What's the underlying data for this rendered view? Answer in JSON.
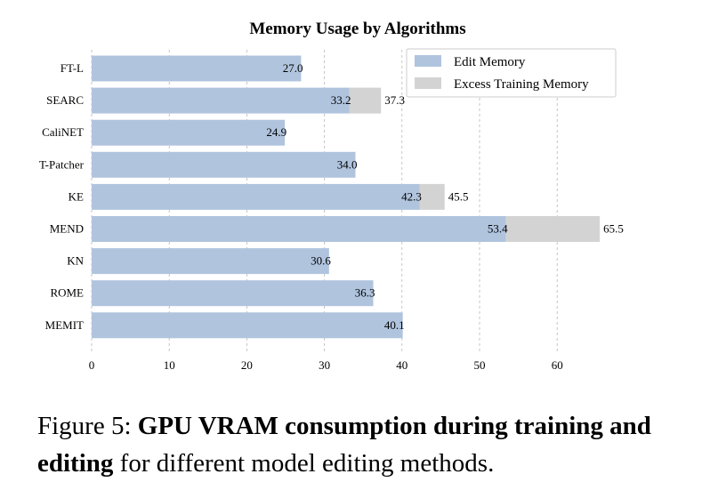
{
  "chart_data": {
    "type": "bar",
    "orientation": "horizontal",
    "stacked": true,
    "title": "Memory Usage by Algorithms",
    "categories": [
      "FT-L",
      "SEARC",
      "CaliNET",
      "T-Patcher",
      "KE",
      "MEND",
      "KN",
      "ROME",
      "MEMIT"
    ],
    "series": [
      {
        "name": "Edit Memory",
        "color": "#b0c4de",
        "values": [
          27.0,
          33.2,
          24.9,
          34.0,
          42.3,
          53.4,
          30.6,
          36.3,
          40.1
        ]
      },
      {
        "name": "Excess Training Memory",
        "color": "#d3d3d3",
        "values": [
          0,
          4.1,
          0,
          0,
          3.2,
          12.1,
          0,
          0,
          0
        ]
      }
    ],
    "edit_labels": [
      "27.0",
      "33.2",
      "24.9",
      "34.0",
      "42.3",
      "53.4",
      "30.6",
      "36.3",
      "40.1"
    ],
    "total_labels": [
      "",
      "37.3",
      "",
      "",
      "45.5",
      "65.5",
      "",
      "",
      ""
    ],
    "xticks": [
      "0",
      "10",
      "20",
      "30",
      "40",
      "50",
      "60"
    ],
    "xlim": [
      0,
      70
    ],
    "grid": "vertical dashed",
    "legend_position": "top-right"
  },
  "caption": {
    "prefix": "Figure 5: ",
    "bold": "GPU VRAM consumption during training and editing",
    "rest": " for different model editing methods."
  }
}
